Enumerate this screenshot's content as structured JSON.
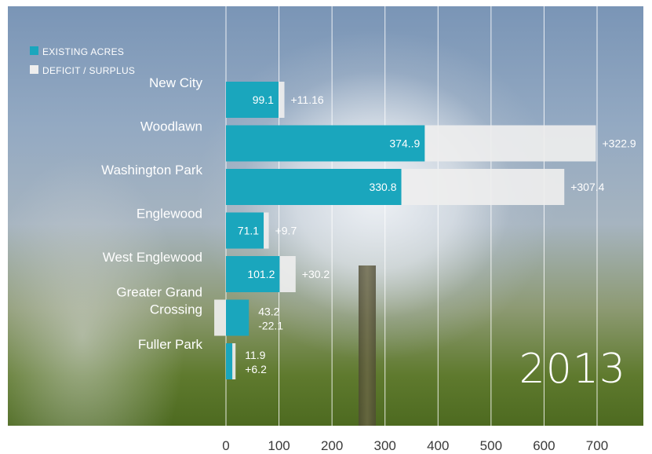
{
  "colors": {
    "existing": "#1aa6bd",
    "deficit": "#eeeeee",
    "grid": "#ffffff",
    "tick_text": "#3a3a3a",
    "label_text": "#ffffff"
  },
  "year": "2013",
  "chart_data": {
    "type": "bar",
    "orientation": "horizontal",
    "stacked": true,
    "title": "",
    "xlabel": "",
    "ylabel": "",
    "xlim": [
      0,
      700
    ],
    "x_ticks": [
      0,
      100,
      200,
      300,
      400,
      500,
      600,
      700
    ],
    "x_tick_labels": [
      "0",
      "100",
      "200",
      "300",
      "400",
      "500",
      "600",
      "700"
    ],
    "grid": true,
    "legend_position": "top-left",
    "categories": [
      "New City",
      "Woodlawn",
      "Washington Park",
      "Englewood",
      "West Englewood",
      "Greater Grand Crossing",
      "Fuller Park"
    ],
    "category_lines": [
      [
        "New City"
      ],
      [
        "Woodlawn"
      ],
      [
        "Washington Park"
      ],
      [
        "Englewood"
      ],
      [
        "West Englewood"
      ],
      [
        "Greater Grand",
        "Crossing"
      ],
      [
        "Fuller Park"
      ]
    ],
    "series": [
      {
        "name": "EXISTING ACRES",
        "values": [
          99.1,
          374.9,
          330.8,
          71.1,
          101.2,
          43.2,
          11.9
        ],
        "labels": [
          "99.1",
          "374..9",
          "330.8",
          "71.1",
          "101.2",
          "43.2",
          "11.9"
        ]
      },
      {
        "name": "DEFICIT / SURPLUS",
        "values": [
          11.16,
          322.9,
          307.4,
          9.7,
          30.2,
          -22.1,
          6.2
        ],
        "labels": [
          "+11.16",
          "+322.9",
          "+307.4",
          "+9.7",
          "+30.2",
          "-22.1",
          "+6.2"
        ]
      }
    ]
  }
}
